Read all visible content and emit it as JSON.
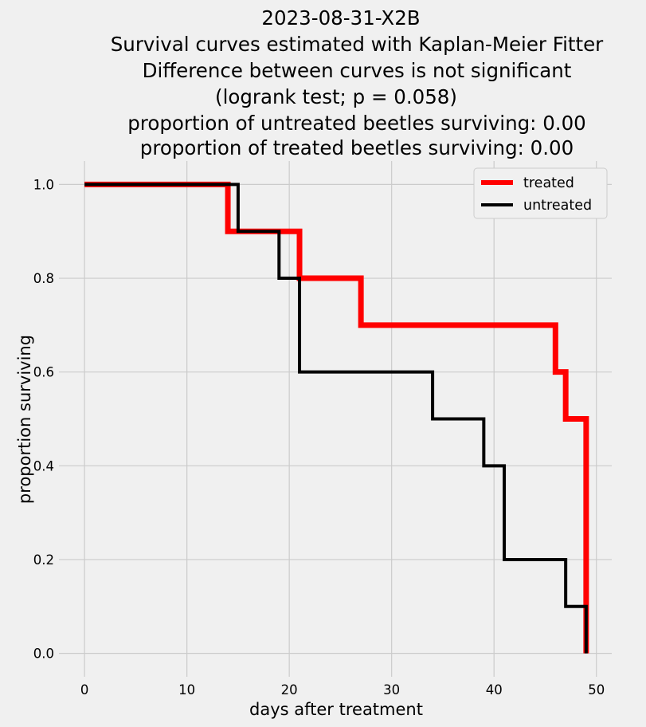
{
  "chart_data": {
    "type": "line",
    "title": [
      "2023-08-31-X2B",
      "Survival curves estimated with Kaplan-Meier Fitter",
      "Difference between curves is not significant",
      "(logrank test; p = 0.058)",
      "proportion of untreated beetles surviving: 0.00",
      "proportion of treated beetles surviving: 0.00"
    ],
    "xlabel": "days after treatment",
    "ylabel": "proportion surviving",
    "xlim": [
      -2.5,
      51.5
    ],
    "ylim": [
      -0.05,
      1.05
    ],
    "xticks": [
      0,
      10,
      20,
      30,
      40,
      50
    ],
    "yticks": [
      0.0,
      0.2,
      0.4,
      0.6,
      0.8,
      1.0
    ],
    "xtick_labels": [
      "0",
      "10",
      "20",
      "30",
      "40",
      "50"
    ],
    "ytick_labels": [
      "0.0",
      "0.2",
      "0.4",
      "0.6",
      "0.8",
      "1.0"
    ],
    "grid": true,
    "legend_position": "top-right",
    "step_style": "post",
    "series": [
      {
        "name": "treated",
        "color": "#ff0000",
        "x": [
          0,
          14,
          21,
          27,
          46,
          47,
          49,
          49
        ],
        "y": [
          1.0,
          0.9,
          0.8,
          0.7,
          0.6,
          0.5,
          0.0,
          0.0
        ]
      },
      {
        "name": "untreated",
        "color": "#000000",
        "x": [
          0,
          15,
          19,
          21,
          34,
          39,
          41,
          47,
          49
        ],
        "y": [
          1.0,
          0.9,
          0.8,
          0.6,
          0.5,
          0.4,
          0.2,
          0.1,
          0.0
        ]
      }
    ]
  }
}
